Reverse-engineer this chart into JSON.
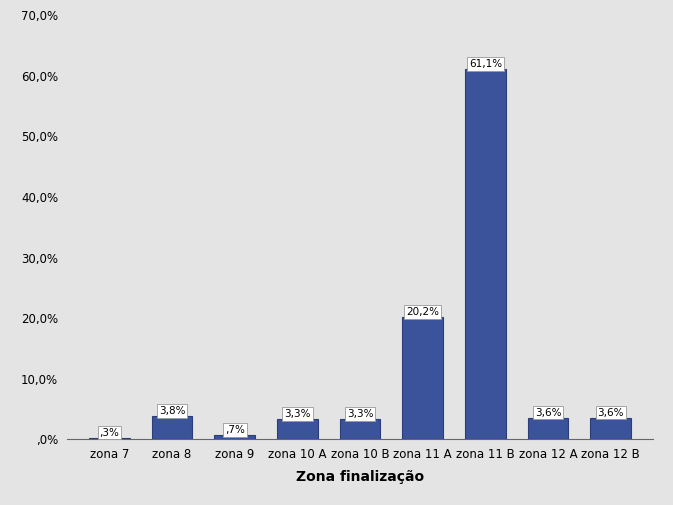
{
  "categories": [
    "zona 7",
    "zona 8",
    "zona 9",
    "zona 10 A",
    "zona 10 B",
    "zona 11 A",
    "zona 11 B",
    "zona 12 A",
    "zona 12 B"
  ],
  "values": [
    0.3,
    3.8,
    0.7,
    3.3,
    3.3,
    20.2,
    61.1,
    3.6,
    3.6
  ],
  "labels": [
    ",3%",
    "3,8%",
    ",7%",
    "3,3%",
    "3,3%",
    "20,2%",
    "61,1%",
    "3,6%",
    "3,6%"
  ],
  "bar_color": "#3A539B",
  "bar_edge_color": "#2C3E7A",
  "background_color": "#E4E4E4",
  "plot_bg_color": "#E4E4E4",
  "xlabel": "Zona finalização",
  "ylabel": "",
  "ylim": [
    0,
    70
  ],
  "yticks": [
    0,
    10,
    20,
    30,
    40,
    50,
    60,
    70
  ],
  "ytick_labels": [
    ",0%",
    "10,0%",
    "20,0%",
    "30,0%",
    "40,0%",
    "50,0%",
    "60,0%",
    "70,0%"
  ],
  "title": "",
  "label_fontsize": 7.5,
  "xlabel_fontsize": 10,
  "tick_fontsize": 8.5
}
